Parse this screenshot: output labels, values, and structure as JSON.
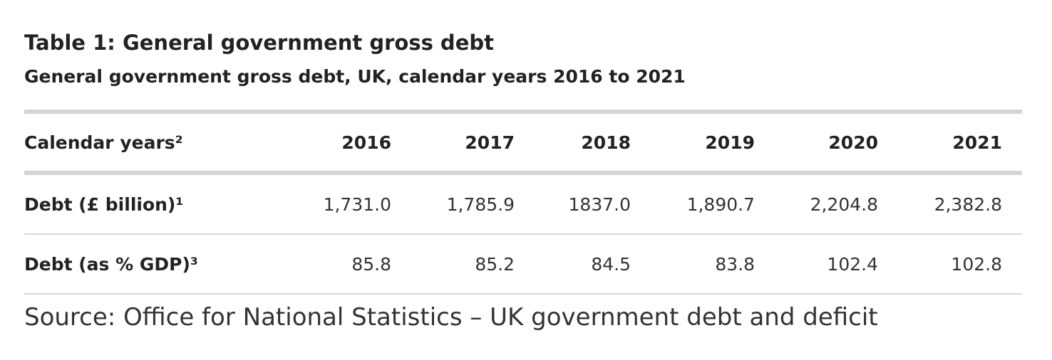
{
  "table": {
    "title": "Table 1: General government gross debt",
    "subtitle": "General government gross debt, UK, calendar years 2016 to 2021",
    "header": {
      "label": "Calendar years²",
      "years": [
        "2016",
        "2017",
        "2018",
        "2019",
        "2020",
        "2021"
      ]
    },
    "rows": [
      {
        "label": "Debt (£ billion)¹",
        "values": [
          "1,731.0",
          "1,785.9",
          "1837.0",
          "1,890.7",
          "2,204.8",
          "2,382.8"
        ]
      },
      {
        "label": "Debt (as % GDP)³",
        "values": [
          "85.8",
          "85.2",
          "84.5",
          "83.8",
          "102.4",
          "102.8"
        ]
      }
    ],
    "source": "Source: Office for National Statistics – UK government debt and deficit"
  },
  "colors": {
    "text": "#222222",
    "rule_heavy": "#d4d4d4",
    "rule_light": "#d6d6d6"
  }
}
